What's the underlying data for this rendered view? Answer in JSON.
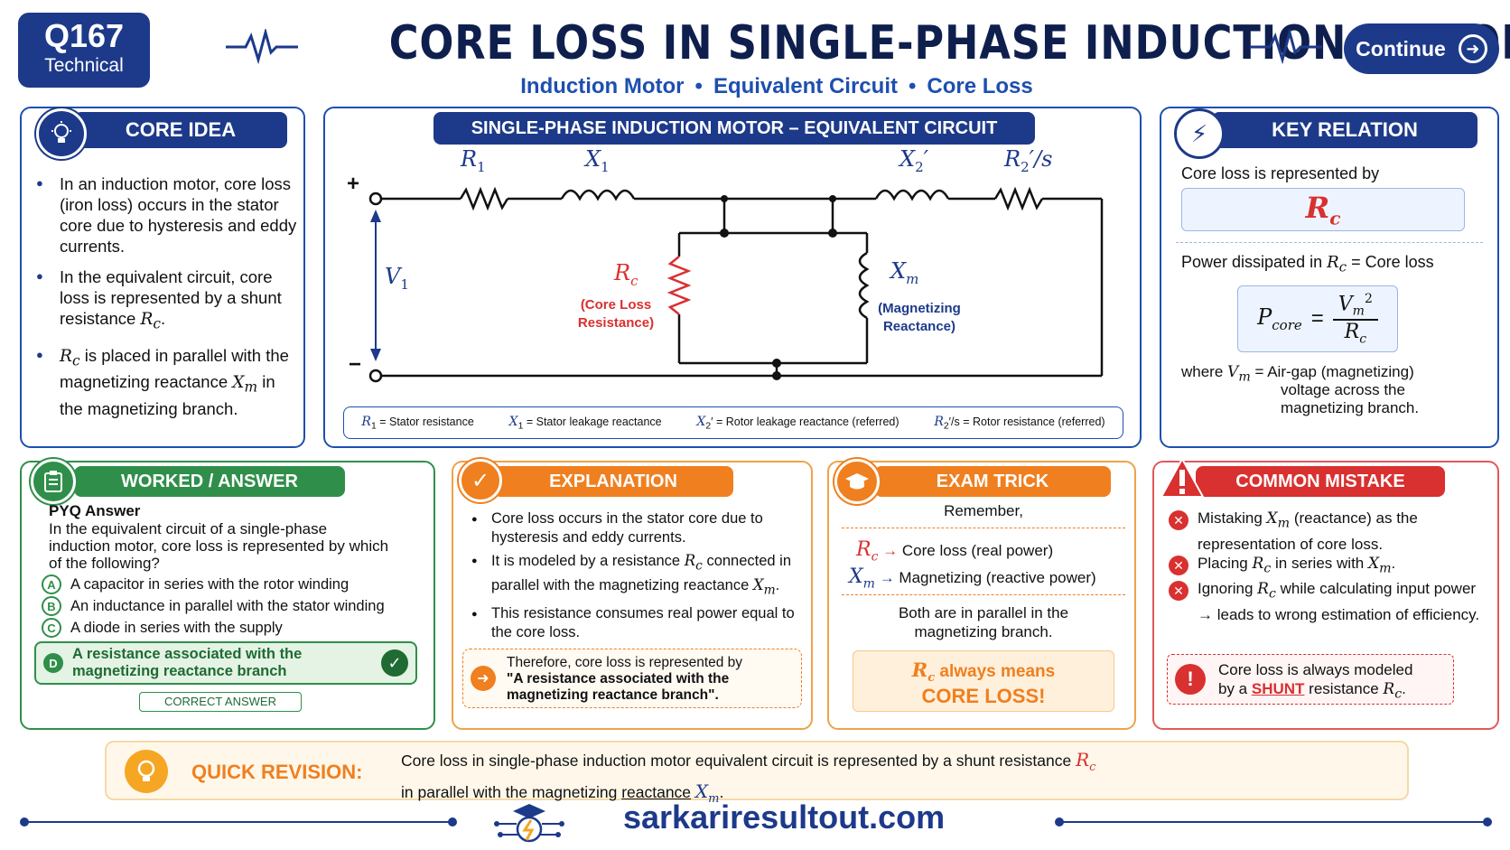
{
  "header": {
    "badge_number": "Q167",
    "badge_type": "Technical",
    "title": "CORE LOSS IN SINGLE-PHASE INDUCTION MOTOR",
    "tags": [
      "Induction Motor",
      "Equivalent Circuit",
      "Core Loss"
    ],
    "continue_label": "Continue"
  },
  "core_idea": {
    "heading": "CORE IDEA",
    "b1": "In an induction motor, core loss (iron loss) occurs in the stator core due to hysteresis and eddy currents.",
    "b2_pre": "In the equivalent circuit, core loss is represented by a shunt resistance",
    "b3_post": "is placed in parallel with the magnetizing reactance",
    "b3_tail": "in the magnetizing branch."
  },
  "circuit": {
    "heading": "SINGLE-PHASE INDUCTION MOTOR – EQUIVALENT CIRCUIT",
    "labels": {
      "R1": "R",
      "X1": "X",
      "X2": "X",
      "R2s": "R",
      "V1": "V",
      "Rc": "R",
      "Xm": "X",
      "plus": "+",
      "minus": "−"
    },
    "rc_note_1": "(Core Loss",
    "rc_note_2": "Resistance)",
    "xm_note_1": "(Magnetizing",
    "xm_note_2": "Reactance)",
    "legend": [
      {
        "sym": "R",
        "sub": "1",
        "text": "= Stator resistance"
      },
      {
        "sym": "X",
        "sub": "1",
        "text": "= Stator leakage reactance"
      },
      {
        "sym": "X",
        "sub": "2",
        "text": "= Rotor leakage reactance (referred)"
      },
      {
        "sym": "R",
        "sub": "2",
        "text": "= Rotor resistance (referred)"
      }
    ]
  },
  "key_relation": {
    "heading": "KEY RELATION",
    "line1": "Core loss is represented by",
    "line2_pre": "Power dissipated in",
    "line2_post": "= Core loss",
    "formula_lhs": "P",
    "formula_lhs_sub": "core",
    "where_pre": "where",
    "where_text_1": "= Air-gap (magnetizing)",
    "where_text_2": "voltage across the",
    "where_text_3": "magnetizing branch."
  },
  "worked": {
    "heading": "WORKED / ANSWER",
    "pyq_label": "PYQ Answer",
    "question": "In the equivalent circuit of a single-phase induction motor, core loss is represented by which of the following?",
    "options": [
      {
        "key": "A",
        "text": "A capacitor in series with the rotor winding"
      },
      {
        "key": "B",
        "text": "An inductance in parallel with the stator winding"
      },
      {
        "key": "C",
        "text": "A diode in series with the supply"
      },
      {
        "key": "D",
        "text": "A resistance associated with the magnetizing reactance branch"
      }
    ],
    "correct_label": "CORRECT ANSWER"
  },
  "explanation": {
    "heading": "EXPLANATION",
    "b1": "Core loss occurs in the stator core due to hysteresis and eddy currents.",
    "b2_pre": "It is modeled by a resistance",
    "b2_post": "connected in parallel with the magnetizing reactance",
    "b3": "This resistance consumes real power equal to the core loss.",
    "therefore_1": "Therefore, core loss is represented by",
    "therefore_2": "\"A resistance associated with the",
    "therefore_3": "magnetizing reactance branch\"."
  },
  "exam_trick": {
    "heading": "EXAM TRICK",
    "remember": "Remember,",
    "rc_text": "Core loss (real power)",
    "xm_text": "Magnetizing (reactive power)",
    "both_1": "Both are in parallel in the",
    "both_2": "magnetizing branch.",
    "always": "always means",
    "core_loss": "CORE LOSS!"
  },
  "mistake": {
    "heading": "COMMON MISTAKE",
    "m1_pre": "Mistaking",
    "m1_post": "(reactance) as the representation of core loss.",
    "m2_pre": "Placing",
    "m2_mid": "in series with",
    "m3_pre": "Ignoring",
    "m3_post": "while calculating input power → leads to wrong estimation of efficiency.",
    "note_1": "Core loss is always modeled",
    "note_by": "by a",
    "note_shunt": "SHUNT",
    "note_res": "resistance"
  },
  "quick_revision": {
    "label": "QUICK REVISION:",
    "text_1": "Core loss in single-phase induction motor equivalent circuit is represented by a shunt resistance",
    "text_2_pre": "in parallel with the magnetizing",
    "text_2_link": "reactance"
  },
  "footer": {
    "url": "sarkariresultout.com"
  },
  "colors": {
    "navy": "#1d3a8a",
    "green": "#2f8f4a",
    "orange": "#f07f1f",
    "red": "#d93030"
  }
}
